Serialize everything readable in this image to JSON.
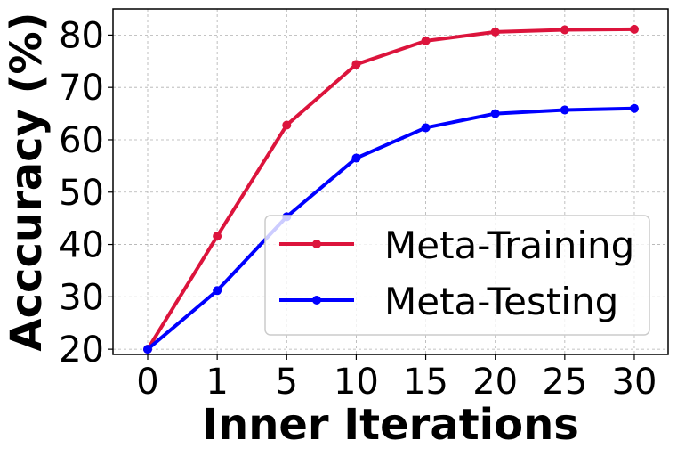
{
  "chart_data": {
    "type": "line",
    "categories": [
      "0",
      "1",
      "5",
      "10",
      "15",
      "20",
      "25",
      "30"
    ],
    "series": [
      {
        "name": "Meta-Training",
        "color": "#dc143c",
        "values": [
          20.0,
          41.6,
          62.8,
          74.4,
          78.9,
          80.6,
          81.0,
          81.1
        ]
      },
      {
        "name": "Meta-Testing",
        "color": "#0000ff",
        "values": [
          20.0,
          31.2,
          45.3,
          56.5,
          62.3,
          65.0,
          65.7,
          66.0
        ]
      }
    ],
    "xlabel": "Inner Iterations",
    "ylabel": "Acccuracy (%)",
    "ylim": [
      19,
      85
    ],
    "yticks": [
      20,
      30,
      40,
      50,
      60,
      70,
      80
    ],
    "grid": true,
    "legend_position": "lower-right"
  }
}
